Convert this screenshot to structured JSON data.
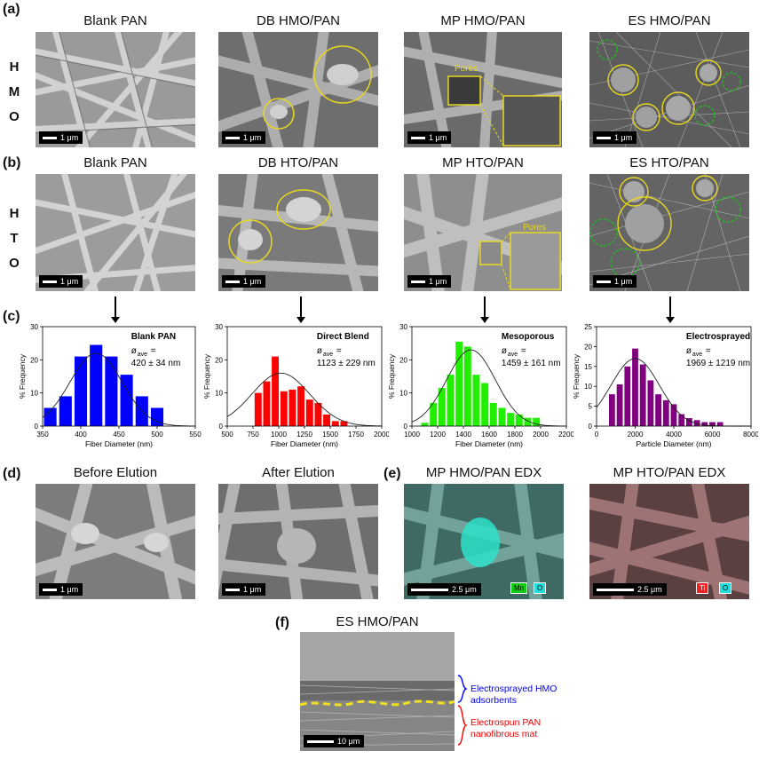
{
  "panels": {
    "a": "(a)",
    "b": "(b)",
    "c": "(c)",
    "d": "(d)",
    "e": "(e)",
    "f": "(f)"
  },
  "row_labels": {
    "hmo": [
      "H",
      "M",
      "O"
    ],
    "hto": [
      "H",
      "T",
      "O"
    ]
  },
  "row_a": {
    "titles": [
      "Blank PAN",
      "DB HMO/PAN",
      "MP HMO/PAN",
      "ES HMO/PAN"
    ],
    "scale": "1 μm",
    "pores_label": "Pores"
  },
  "row_b": {
    "titles": [
      "Blank PAN",
      "DB HTO/PAN",
      "MP HTO/PAN",
      "ES HTO/PAN"
    ],
    "scale": "1 μm",
    "pores_label": "Pores"
  },
  "row_d": {
    "titles": [
      "Before Elution",
      "After Elution"
    ],
    "scale": "1 μm"
  },
  "row_e": {
    "titles": [
      "MP HMO/PAN EDX",
      "MP HTO/PAN EDX"
    ],
    "scale": "2.5 μm",
    "hmo_tags": [
      "Mn",
      "O"
    ],
    "hto_tags": [
      "Ti",
      "O"
    ]
  },
  "row_f": {
    "title": "ES HMO/PAN",
    "scale": "10 μm",
    "top_label": [
      "Electrosprayed HMO",
      "adsorbents"
    ],
    "bottom_label": [
      "Electrospun PAN",
      "nanofibrous mat"
    ]
  },
  "colors": {
    "blank": "#0000ff",
    "direct": "#ff0000",
    "meso": "#22ee00",
    "electro": "#800080",
    "yellow": "#e8d820",
    "green": "#22bb22"
  },
  "chart_data": [
    {
      "type": "bar",
      "legend": "Blank PAN",
      "stat_label": "ø",
      "stat_sub": "ave",
      "stat_eq": "=",
      "stat_value": "420 ± 34 nm",
      "xlabel": "Fiber Diameter (nm)",
      "ylabel": "% Frequency",
      "xlim": [
        350,
        550
      ],
      "ylim": [
        0,
        30
      ],
      "xticks": [
        350,
        400,
        450,
        500,
        550
      ],
      "yticks": [
        0,
        10,
        20,
        30
      ],
      "bin_width": 20,
      "bins": [
        360,
        380,
        400,
        420,
        440,
        460,
        480,
        500
      ],
      "values": [
        5.5,
        9,
        21,
        24.5,
        21,
        15.5,
        9,
        5.5
      ],
      "fit": {
        "mean": 420,
        "sd": 34,
        "peak": 22
      }
    },
    {
      "type": "bar",
      "legend": "Direct Blend",
      "stat_label": "ø",
      "stat_sub": "ave",
      "stat_eq": "=",
      "stat_value": "1123 ± 229 nm",
      "xlabel": "Fiber Diameter (nm)",
      "ylabel": "% Frequency",
      "xlim": [
        500,
        2000
      ],
      "ylim": [
        0,
        30
      ],
      "xticks": [
        500,
        750,
        1000,
        1250,
        1500,
        1750,
        2000
      ],
      "yticks": [
        0,
        10,
        20,
        30
      ],
      "bin_width": 83,
      "bins": [
        800,
        883,
        966,
        1050,
        1133,
        1216,
        1300,
        1383,
        1466,
        1550,
        1633
      ],
      "values": [
        10,
        13.5,
        21,
        10.5,
        11,
        12,
        8,
        7,
        3.5,
        1.5,
        1.5
      ],
      "fit": {
        "mean": 1020,
        "sd": 280,
        "peak": 16
      }
    },
    {
      "type": "bar",
      "legend": "Mesoporous",
      "stat_label": "ø",
      "stat_sub": "ave",
      "stat_eq": "=",
      "stat_value": "1459 ± 161 nm",
      "xlabel": "Fiber Diameter (nm)",
      "ylabel": "% Frequency",
      "xlim": [
        1000,
        2200
      ],
      "ylim": [
        0,
        30
      ],
      "xticks": [
        1000,
        1200,
        1400,
        1600,
        1800,
        2000,
        2200
      ],
      "yticks": [
        0,
        10,
        20,
        30
      ],
      "bin_width": 67,
      "bins": [
        1100,
        1167,
        1233,
        1300,
        1367,
        1433,
        1500,
        1567,
        1633,
        1700,
        1767,
        1833,
        1900,
        1967
      ],
      "values": [
        1,
        7,
        11.5,
        15.5,
        25.5,
        24,
        15.5,
        13,
        7,
        5.5,
        4,
        3.5,
        2.5,
        2.5
      ],
      "fit": {
        "mean": 1459,
        "sd": 190,
        "peak": 23
      }
    },
    {
      "type": "bar",
      "legend": "Electrosprayed",
      "stat_label": "ø",
      "stat_sub": "ave",
      "stat_eq": "=",
      "stat_value": "1969 ± 1219 nm",
      "xlabel": "Particle Diameter (nm)",
      "ylabel": "% Frequency",
      "xlim": [
        0,
        8000
      ],
      "ylim": [
        0,
        25
      ],
      "xticks": [
        0,
        2000,
        4000,
        6000,
        8000
      ],
      "yticks": [
        0,
        5,
        10,
        15,
        20,
        25
      ],
      "bin_width": 380,
      "bins": [
        800,
        1200,
        1600,
        2000,
        2400,
        2800,
        3200,
        3600,
        4000,
        4400,
        4800,
        5200,
        5600,
        6000,
        6400
      ],
      "values": [
        8,
        10.5,
        15,
        19.5,
        15.5,
        11.5,
        8,
        6.5,
        5.5,
        3,
        2,
        1.5,
        1,
        1,
        1
      ],
      "fit": {
        "mean": 2000,
        "sd": 1250,
        "peak": 17
      }
    }
  ]
}
